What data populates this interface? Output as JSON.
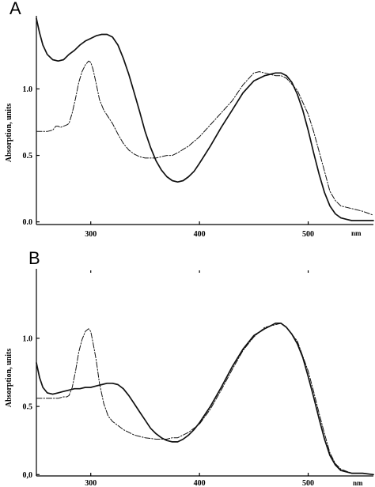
{
  "chart_data": [
    {
      "type": "line",
      "panel_label": "A",
      "xlabel": "nm",
      "ylabel": "Absorption, units",
      "xlim": [
        250,
        560
      ],
      "ylim": [
        0.0,
        1.5
      ],
      "x_ticks": [
        300,
        400,
        500
      ],
      "x_tick_labels": [
        "300",
        "400",
        "500"
      ],
      "y_ticks": [
        0.0,
        0.5,
        1.0
      ],
      "y_tick_labels": [
        "0.0",
        "0.5",
        "1.0"
      ],
      "grid": false,
      "series": [
        {
          "style": "solid",
          "x": [
            250,
            253,
            256,
            260,
            265,
            270,
            275,
            280,
            285,
            290,
            295,
            300,
            305,
            310,
            315,
            320,
            325,
            330,
            335,
            340,
            345,
            350,
            355,
            360,
            365,
            370,
            375,
            380,
            385,
            390,
            395,
            400,
            410,
            420,
            430,
            440,
            450,
            460,
            465,
            470,
            475,
            480,
            485,
            490,
            495,
            500,
            505,
            510,
            515,
            520,
            525,
            530,
            535,
            540,
            545,
            550,
            560
          ],
          "y": [
            1.53,
            1.42,
            1.33,
            1.26,
            1.22,
            1.21,
            1.22,
            1.26,
            1.29,
            1.33,
            1.36,
            1.38,
            1.4,
            1.41,
            1.41,
            1.39,
            1.33,
            1.23,
            1.11,
            0.97,
            0.83,
            0.68,
            0.56,
            0.46,
            0.39,
            0.34,
            0.31,
            0.3,
            0.31,
            0.34,
            0.38,
            0.44,
            0.57,
            0.71,
            0.84,
            0.97,
            1.06,
            1.1,
            1.11,
            1.12,
            1.12,
            1.1,
            1.05,
            0.96,
            0.84,
            0.69,
            0.52,
            0.36,
            0.22,
            0.12,
            0.06,
            0.03,
            0.02,
            0.01,
            0.01,
            0.01,
            0.01
          ]
        },
        {
          "style": "dash-dot",
          "x": [
            250,
            255,
            260,
            265,
            268,
            270,
            272,
            275,
            278,
            280,
            283,
            286,
            289,
            292,
            295,
            298,
            300,
            302,
            305,
            308,
            312,
            316,
            320,
            325,
            330,
            335,
            340,
            345,
            350,
            355,
            360,
            365,
            370,
            375,
            380,
            390,
            400,
            410,
            420,
            430,
            440,
            450,
            455,
            460,
            470,
            475,
            480,
            490,
            500,
            505,
            510,
            515,
            520,
            525,
            530,
            540,
            550,
            560
          ],
          "y": [
            0.68,
            0.68,
            0.68,
            0.69,
            0.72,
            0.72,
            0.71,
            0.72,
            0.73,
            0.74,
            0.82,
            0.93,
            1.05,
            1.13,
            1.18,
            1.21,
            1.2,
            1.15,
            1.04,
            0.92,
            0.84,
            0.79,
            0.74,
            0.66,
            0.59,
            0.54,
            0.51,
            0.49,
            0.48,
            0.48,
            0.48,
            0.49,
            0.5,
            0.5,
            0.52,
            0.57,
            0.64,
            0.73,
            0.82,
            0.91,
            1.03,
            1.12,
            1.13,
            1.12,
            1.1,
            1.1,
            1.08,
            0.99,
            0.81,
            0.68,
            0.53,
            0.38,
            0.23,
            0.16,
            0.12,
            0.1,
            0.08,
            0.05
          ]
        }
      ]
    },
    {
      "type": "line",
      "panel_label": "B",
      "xlabel": "nm",
      "ylabel": "Absorption, units",
      "xlim": [
        250,
        560
      ],
      "ylim": [
        0.0,
        1.5
      ],
      "x_ticks": [
        300,
        400,
        500
      ],
      "x_tick_labels": [
        "300",
        "400",
        "500"
      ],
      "y_ticks": [
        0.0,
        0.5,
        1.0
      ],
      "y_tick_labels": [
        "0,0",
        "0.5",
        "1.0"
      ],
      "grid": false,
      "series": [
        {
          "style": "solid",
          "x": [
            250,
            253,
            256,
            260,
            265,
            270,
            275,
            280,
            285,
            290,
            295,
            300,
            305,
            310,
            315,
            320,
            325,
            330,
            335,
            340,
            345,
            350,
            355,
            360,
            365,
            370,
            375,
            380,
            385,
            390,
            395,
            400,
            410,
            420,
            430,
            440,
            450,
            460,
            465,
            470,
            475,
            480,
            485,
            490,
            495,
            500,
            505,
            510,
            515,
            520,
            525,
            530,
            535,
            540,
            545,
            550,
            560
          ],
          "y": [
            0.82,
            0.71,
            0.64,
            0.6,
            0.59,
            0.6,
            0.61,
            0.62,
            0.63,
            0.63,
            0.64,
            0.64,
            0.65,
            0.66,
            0.67,
            0.67,
            0.66,
            0.63,
            0.58,
            0.52,
            0.46,
            0.4,
            0.34,
            0.3,
            0.27,
            0.25,
            0.24,
            0.24,
            0.26,
            0.29,
            0.33,
            0.38,
            0.5,
            0.64,
            0.79,
            0.92,
            1.02,
            1.07,
            1.09,
            1.11,
            1.11,
            1.08,
            1.03,
            0.96,
            0.86,
            0.72,
            0.57,
            0.41,
            0.26,
            0.14,
            0.07,
            0.03,
            0.02,
            0.01,
            0.01,
            0.01,
            0.0
          ]
        },
        {
          "style": "dash-dot",
          "x": [
            250,
            255,
            260,
            265,
            270,
            275,
            278,
            280,
            283,
            286,
            289,
            292,
            295,
            298,
            300,
            302,
            305,
            308,
            312,
            316,
            320,
            325,
            330,
            340,
            350,
            360,
            370,
            375,
            380,
            385,
            390,
            400,
            410,
            420,
            430,
            440,
            450,
            460,
            470,
            475,
            480,
            490,
            500,
            505,
            510,
            515,
            520,
            525,
            530,
            540,
            550,
            560
          ],
          "y": [
            0.56,
            0.56,
            0.56,
            0.56,
            0.56,
            0.57,
            0.57,
            0.58,
            0.64,
            0.76,
            0.9,
            0.99,
            1.05,
            1.07,
            1.05,
            0.97,
            0.84,
            0.67,
            0.52,
            0.43,
            0.39,
            0.36,
            0.33,
            0.29,
            0.27,
            0.26,
            0.26,
            0.27,
            0.27,
            0.29,
            0.31,
            0.37,
            0.48,
            0.62,
            0.77,
            0.91,
            1.01,
            1.08,
            1.1,
            1.11,
            1.08,
            0.98,
            0.76,
            0.61,
            0.45,
            0.3,
            0.16,
            0.08,
            0.04,
            0.01,
            0.01,
            0.0
          ]
        }
      ]
    }
  ]
}
